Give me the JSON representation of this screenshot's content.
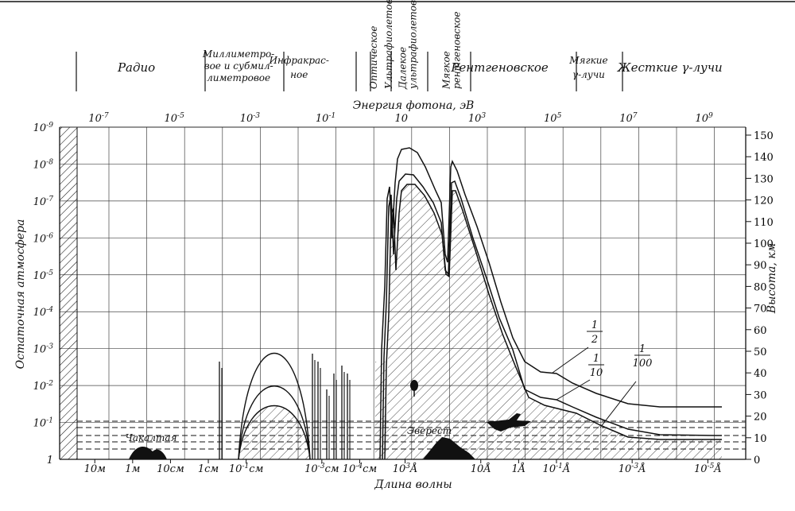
{
  "chart_data": {
    "type": "line",
    "top_axis": {
      "label": "Энергия фотона, эВ",
      "ticks": [
        {
          "value": -7,
          "base": "10",
          "exp": "-7"
        },
        {
          "value": -5,
          "base": "10",
          "exp": "-5"
        },
        {
          "value": -3,
          "base": "10",
          "exp": "-3"
        },
        {
          "value": -1,
          "base": "10",
          "exp": "-1"
        },
        {
          "value": 1,
          "base": "10",
          "exp": ""
        },
        {
          "value": 3,
          "base": "10",
          "exp": "3"
        },
        {
          "value": 5,
          "base": "10",
          "exp": "5"
        },
        {
          "value": 7,
          "base": "10",
          "exp": "7"
        },
        {
          "value": 9,
          "base": "10",
          "exp": "9"
        }
      ],
      "range_log10_eV": [
        -8,
        10
      ]
    },
    "bottom_axis": {
      "label": "Длина волны",
      "ticks": [
        {
          "log10_eV": -7.1,
          "text": "10м"
        },
        {
          "log10_eV": -6.1,
          "text": "1м"
        },
        {
          "log10_eV": -5.1,
          "text": "10см"
        },
        {
          "log10_eV": -4.1,
          "text": "1см"
        },
        {
          "log10_eV": -3.1,
          "base": "10",
          "exp": "-1",
          "unit": "см"
        },
        {
          "log10_eV": -1.1,
          "base": "10",
          "exp": "-3",
          "unit": "см"
        },
        {
          "log10_eV": -0.1,
          "base": "10",
          "exp": "-4",
          "unit": "см"
        },
        {
          "log10_eV": 1.1,
          "base": "10",
          "exp": "3",
          "unit": "Å"
        },
        {
          "log10_eV": 3.1,
          "text": "10Å"
        },
        {
          "log10_eV": 4.1,
          "text": "1Å"
        },
        {
          "log10_eV": 5.1,
          "base": "10",
          "exp": "-1",
          "unit": "Å"
        },
        {
          "log10_eV": 7.1,
          "base": "10",
          "exp": "-3",
          "unit": "Å"
        },
        {
          "log10_eV": 9.1,
          "base": "10",
          "exp": "-5",
          "unit": "Å"
        }
      ]
    },
    "left_axis": {
      "label": "Остаточная атмосфера",
      "ticks": [
        {
          "value": -9,
          "base": "10",
          "exp": "-9"
        },
        {
          "value": -8,
          "base": "10",
          "exp": "-8"
        },
        {
          "value": -7,
          "base": "10",
          "exp": "-7"
        },
        {
          "value": -6,
          "base": "10",
          "exp": "-6"
        },
        {
          "value": -5,
          "base": "10",
          "exp": "-5"
        },
        {
          "value": -4,
          "base": "10",
          "exp": "-4"
        },
        {
          "value": -3,
          "base": "10",
          "exp": "-3"
        },
        {
          "value": -2,
          "base": "10",
          "exp": "-2"
        },
        {
          "value": -1,
          "base": "10",
          "exp": "-1"
        },
        {
          "value": 0,
          "text": "1"
        }
      ],
      "range_log10": [
        0,
        -9
      ]
    },
    "right_axis": {
      "label": "Высота, км",
      "ticks": [
        0,
        10,
        20,
        30,
        40,
        50,
        60,
        70,
        80,
        90,
        100,
        110,
        120,
        130,
        140,
        150
      ]
    },
    "bands": [
      {
        "name": "Радио",
        "x": -6.0
      },
      {
        "name": "Миллиметро-|вое и субмил-|лиметровое",
        "x": -3.3
      },
      {
        "name": "Инфракрас-|ное",
        "x": -1.7
      },
      {
        "name": "Рентгеновское",
        "x": 3.6
      },
      {
        "name": "Мягкие|γ-лучи",
        "x": 5.95
      },
      {
        "name": "Жесткие γ-лучи",
        "x": 8.1
      }
    ],
    "vertical_bands": [
      {
        "name": "Оптическое",
        "x": 0.35
      },
      {
        "name": "Ультрафиолетовое",
        "x": 0.75
      },
      {
        "name": "Далекое|ультрафиолетовое",
        "x": 1.25
      },
      {
        "name": "Мягкое|рентгеновское",
        "x": 2.4
      }
    ],
    "series": [
      {
        "name": "1/2",
        "x": [
          3.5,
          4.0,
          4.5,
          4.85,
          5.1,
          5.5,
          6.0,
          6.5,
          7.0,
          7.5,
          8.0,
          9.0,
          9.5
        ],
        "y": [
          -5.0,
          -4.0,
          -3.0,
          -2.5,
          -2.05,
          -2.05,
          -1.8,
          -1.55,
          -1.35,
          -1.23,
          -1.2,
          -1.2,
          -1.2
        ]
      },
      {
        "name": "1/10",
        "x": [
          3.4,
          3.9,
          4.4,
          4.8,
          5.1,
          5.5,
          6.0,
          6.5,
          7.0,
          7.5,
          8.0,
          9.0,
          9.5
        ],
        "y": [
          -5.0,
          -4.0,
          -3.0,
          -2.3,
          -1.8,
          -1.75,
          -1.45,
          -1.1,
          -0.85,
          -0.75,
          -0.72,
          -0.72,
          -0.72
        ]
      },
      {
        "name": "1/100",
        "x": [
          3.3,
          3.8,
          4.3,
          4.75,
          5.1,
          5.5,
          6.0,
          6.5,
          7.0,
          7.5,
          8.0,
          9.0,
          9.5
        ],
        "y": [
          -5.0,
          -4.0,
          -3.0,
          -2.15,
          -1.6,
          -1.55,
          -1.25,
          -0.85,
          -0.55,
          -0.42,
          -0.4,
          -0.38,
          -0.38
        ]
      }
    ],
    "labels": {
      "chacaltaya": "Чакалтая",
      "everest": "Эверест",
      "frac_1_2": {
        "num": "1",
        "den": "2"
      },
      "frac_1_10": {
        "num": "1",
        "den": "10"
      },
      "frac_1_100": {
        "num": "1",
        "den": "100"
      }
    }
  }
}
